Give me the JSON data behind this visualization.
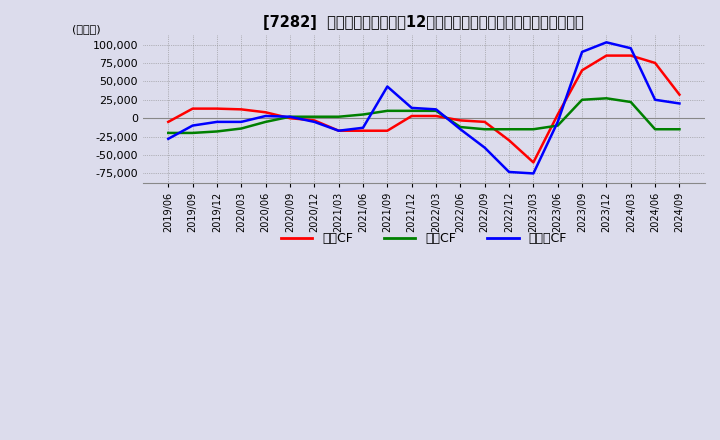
{
  "title": "[7282]  キャッシュフローの12か月移動合計の対前年同期増減額の推移",
  "ylabel": "(百万円)",
  "ylim": [
    -87500,
    112500
  ],
  "yticks": [
    -75000,
    -50000,
    -25000,
    0,
    25000,
    50000,
    75000,
    100000
  ],
  "legend": [
    "営業CF",
    "投資CF",
    "フリーCF"
  ],
  "legend_colors": [
    "#ff0000",
    "#008000",
    "#0000ff"
  ],
  "bg_color": "#dcdcec",
  "plot_bg_color": "#dcdcec",
  "dates": [
    "2019/06",
    "2019/09",
    "2019/12",
    "2020/03",
    "2020/06",
    "2020/09",
    "2020/12",
    "2021/03",
    "2021/06",
    "2021/09",
    "2021/12",
    "2022/03",
    "2022/06",
    "2022/09",
    "2022/12",
    "2023/03",
    "2023/06",
    "2023/09",
    "2023/12",
    "2024/03",
    "2024/06",
    "2024/09"
  ],
  "operating_cf": [
    -5000,
    13000,
    13000,
    12000,
    8000,
    0,
    -3000,
    -17000,
    -17000,
    -17000,
    3000,
    3000,
    -3000,
    -5000,
    -30000,
    -60000,
    5000,
    65000,
    85000,
    85000,
    75000,
    32000
  ],
  "investing_cf": [
    -20000,
    -20000,
    -18000,
    -14000,
    -5000,
    2000,
    2000,
    2000,
    5000,
    10000,
    10000,
    10000,
    -12000,
    -15000,
    -15000,
    -15000,
    -10000,
    25000,
    27000,
    22000,
    -15000,
    -15000
  ],
  "free_cf": [
    -28000,
    -10000,
    -5000,
    -5000,
    3000,
    2000,
    -5000,
    -17000,
    -13000,
    43000,
    14000,
    12000,
    -15000,
    -40000,
    -73000,
    -75000,
    -5000,
    90000,
    103000,
    95000,
    25000,
    20000
  ]
}
